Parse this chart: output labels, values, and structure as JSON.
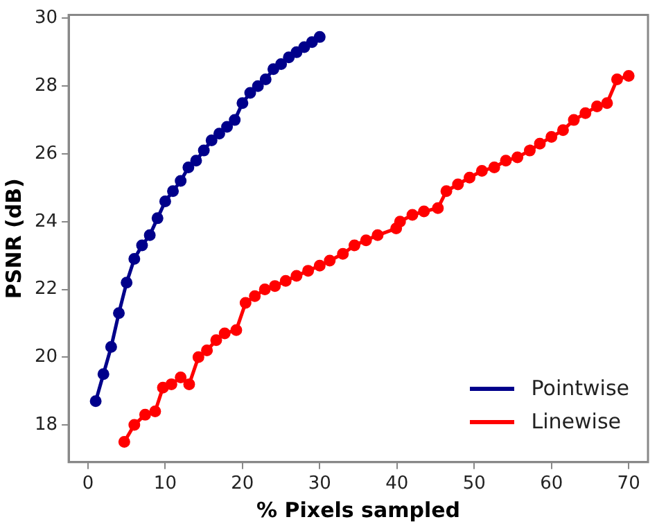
{
  "chart_data": {
    "type": "line",
    "xlabel": "% Pixels sampled",
    "ylabel": "PSNR (dB)",
    "xlim": [
      -2.5,
      72.5
    ],
    "xticks": [
      0,
      10,
      20,
      30,
      40,
      50,
      60,
      70
    ],
    "ylim": [
      16.9,
      30.1
    ],
    "yticks": [
      18,
      20,
      22,
      24,
      26,
      28,
      30
    ],
    "grid": false,
    "legend": "bottom right",
    "marker": "circle",
    "line_style": "solid",
    "series": [
      {
        "name": "Pointwise",
        "color": "#00008b",
        "x": [
          1,
          2,
          3,
          4,
          5,
          6,
          7,
          8,
          9,
          10,
          11,
          12,
          13,
          14,
          15,
          16,
          17,
          18,
          19,
          20,
          21,
          22,
          23,
          24,
          25,
          26,
          27,
          28,
          29,
          30
        ],
        "values": [
          18.7,
          19.5,
          20.3,
          21.3,
          22.2,
          22.9,
          23.3,
          23.6,
          24.1,
          24.6,
          24.9,
          25.2,
          25.6,
          25.8,
          26.1,
          26.4,
          26.6,
          26.8,
          27.0,
          27.5,
          27.8,
          28.0,
          28.2,
          28.5,
          28.65,
          28.85,
          29.0,
          29.15,
          29.3,
          29.45
        ]
      },
      {
        "name": "Linewise",
        "color": "#ff0000",
        "x": [
          4.7,
          6.0,
          7.4,
          8.7,
          9.7,
          10.8,
          12.0,
          13.1,
          14.3,
          15.4,
          16.6,
          17.7,
          19.2,
          20.4,
          21.6,
          22.9,
          24.2,
          25.6,
          27,
          28.5,
          30,
          31.3,
          33,
          34.5,
          36.0,
          37.5,
          39.9,
          40.4,
          42.0,
          43.5,
          45.3,
          46.4,
          47.9,
          49.4,
          51.0,
          52.6,
          54.1,
          55.6,
          57.2,
          58.5,
          60.0,
          61.5,
          62.9,
          64.4,
          65.9,
          67.2,
          68.5,
          70.0
        ],
        "values": [
          17.5,
          18.0,
          18.3,
          18.4,
          19.1,
          19.2,
          19.4,
          19.2,
          20.0,
          20.2,
          20.5,
          20.7,
          20.8,
          21.6,
          21.8,
          22.0,
          22.1,
          22.25,
          22.4,
          22.55,
          22.7,
          22.85,
          23.05,
          23.3,
          23.45,
          23.6,
          23.8,
          24.0,
          24.2,
          24.3,
          24.4,
          24.9,
          25.1,
          25.3,
          25.5,
          25.6,
          25.8,
          25.9,
          26.1,
          26.3,
          26.5,
          26.7,
          27.0,
          27.2,
          27.4,
          27.5,
          28.2,
          28.3
        ]
      }
    ]
  }
}
